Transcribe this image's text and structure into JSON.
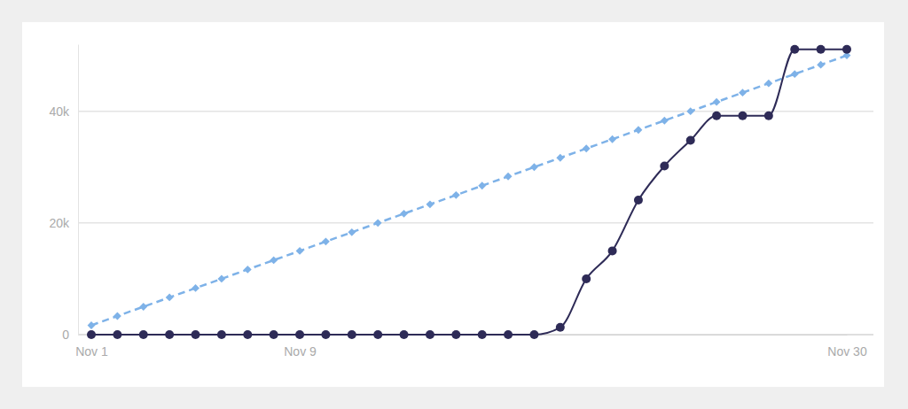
{
  "chart_data": {
    "type": "line",
    "categories": [
      "Nov 1",
      null,
      null,
      null,
      null,
      null,
      null,
      null,
      "Nov 9",
      null,
      null,
      null,
      null,
      null,
      null,
      null,
      null,
      null,
      null,
      null,
      null,
      null,
      null,
      null,
      null,
      null,
      null,
      null,
      null,
      "Nov 30"
    ],
    "series": [
      {
        "color": "#7eb2e8",
        "line_style": "dashed",
        "marker": "diamond",
        "values": [
          1667,
          3333,
          5000,
          6667,
          8333,
          10000,
          11667,
          13333,
          15000,
          16667,
          18333,
          20000,
          21667,
          23333,
          25000,
          26667,
          28333,
          30000,
          31667,
          33333,
          35000,
          36667,
          38333,
          40000,
          41667,
          43333,
          45000,
          46667,
          48333,
          50000
        ]
      },
      {
        "color": "#2e2b57",
        "line_style": "solid",
        "marker": "circle",
        "values": [
          0,
          0,
          0,
          0,
          0,
          0,
          0,
          0,
          0,
          0,
          0,
          0,
          0,
          0,
          0,
          0,
          0,
          0,
          1300,
          10000,
          15000,
          24100,
          30200,
          34800,
          39200,
          39200,
          39200,
          51100,
          51100,
          51100
        ]
      }
    ],
    "ylim": [
      0,
      52000
    ],
    "yticks": [
      0,
      {
        "value": 20000,
        "label": "20k"
      },
      {
        "value": 40000,
        "label": "40k"
      }
    ],
    "grid": true
  }
}
